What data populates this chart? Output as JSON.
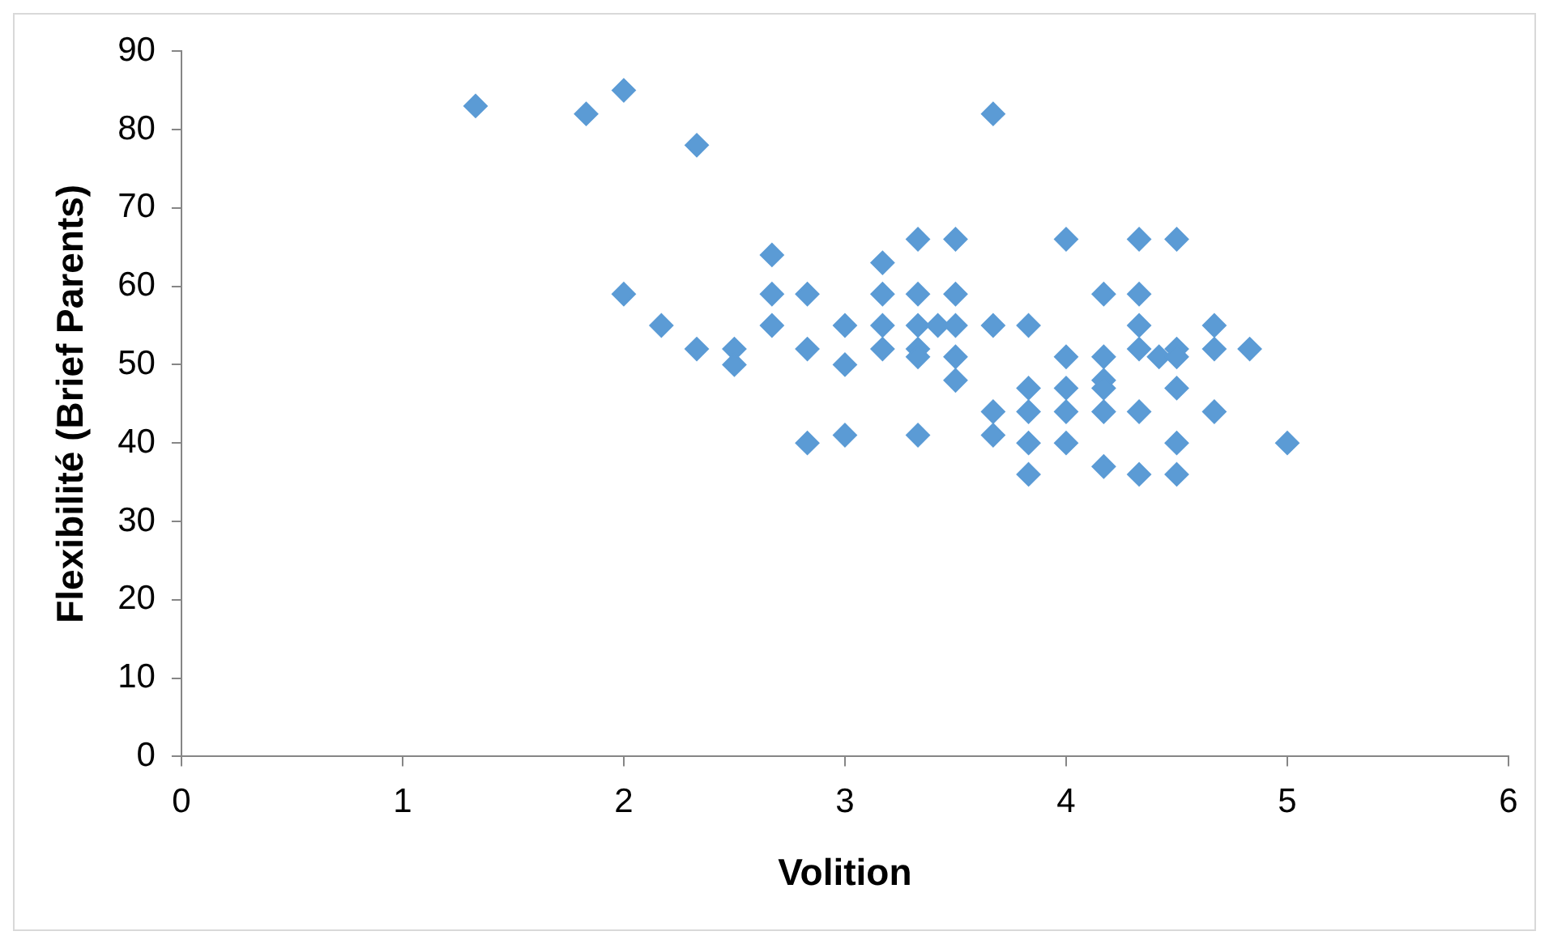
{
  "chart_data": {
    "type": "scatter",
    "xlabel": "Volition",
    "ylabel": "Flexibilité (Brief Parents)",
    "marker": "diamond",
    "grid": false,
    "legend": false,
    "xlim": [
      0,
      6
    ],
    "xticks": [
      0,
      1,
      2,
      3,
      4,
      5,
      6
    ],
    "ylim": [
      0,
      90
    ],
    "yticks": [
      0,
      10,
      20,
      30,
      40,
      50,
      60,
      70,
      80,
      90
    ],
    "series": [
      {
        "color": "#5b9bd5",
        "x": [
          1.33,
          1.83,
          2,
          2.33,
          3.67,
          2,
          2.17,
          2.33,
          2.5,
          2.5,
          2.67,
          2.67,
          2.67,
          2.83,
          2.83,
          2.83,
          3,
          3,
          3,
          3.17,
          3.17,
          3.17,
          3.17,
          3.33,
          3.33,
          3.33,
          3.33,
          3.33,
          3.33,
          3.42,
          3.5,
          3.5,
          3.5,
          3.5,
          3.5,
          3.67,
          3.67,
          3.67,
          3.83,
          3.83,
          3.83,
          3.83,
          3.83,
          4,
          4,
          4,
          4,
          4,
          4.17,
          4.17,
          4.17,
          4.17,
          4.17,
          4.17,
          4.33,
          4.33,
          4.33,
          4.33,
          4.33,
          4.33,
          4.42,
          4.5,
          4.5,
          4.5,
          4.5,
          4.5,
          4.5,
          4.67,
          4.67,
          4.67,
          4.83,
          5
        ],
        "values": [
          83,
          82,
          85,
          78,
          82,
          59,
          55,
          52,
          52,
          50,
          64,
          59,
          55,
          59,
          52,
          40,
          55,
          50,
          41,
          63,
          59,
          55,
          52,
          66,
          59,
          55,
          52,
          51,
          41,
          55,
          66,
          59,
          55,
          51,
          48,
          55,
          44,
          41,
          55,
          47,
          44,
          40,
          36,
          66,
          51,
          47,
          44,
          40,
          59,
          51,
          48,
          47,
          44,
          37,
          66,
          59,
          55,
          52,
          44,
          36,
          51,
          66,
          52,
          51,
          47,
          40,
          36,
          55,
          52,
          44,
          52,
          40
        ]
      }
    ]
  }
}
